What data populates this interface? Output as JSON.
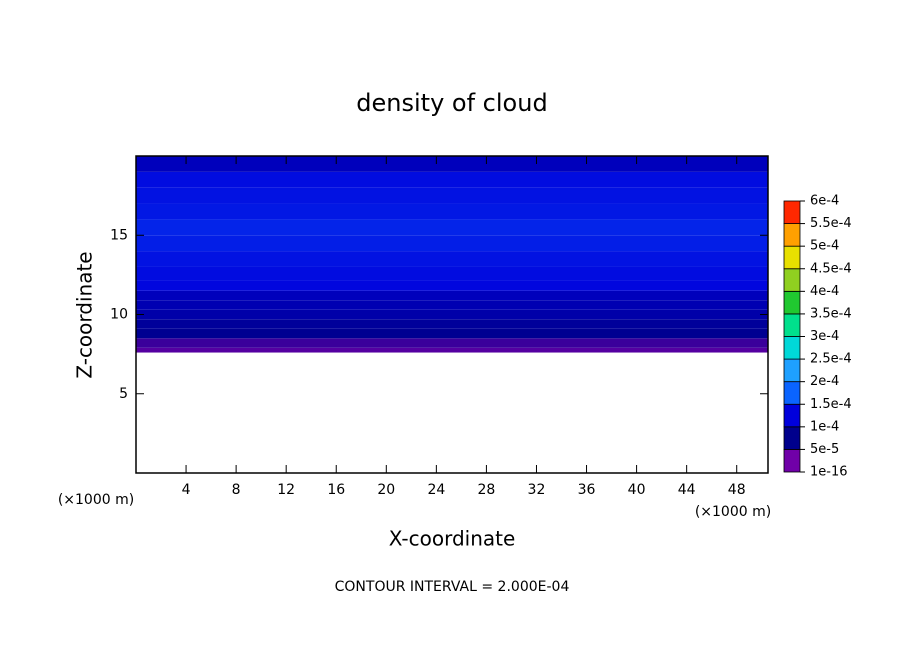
{
  "chart_data": {
    "type": "contour",
    "title": "density of cloud",
    "x_label": "X-coordinate",
    "y_label": "Z-coordinate",
    "x_unit": "(×1000 m)",
    "footer": "CONTOUR INTERVAL = 2.000E-04",
    "xlim": [
      0,
      50.5
    ],
    "ylim": [
      0,
      20
    ],
    "xticks": [
      4,
      8,
      12,
      16,
      20,
      24,
      28,
      32,
      36,
      40,
      44,
      48
    ],
    "yticks": [
      5,
      10,
      15
    ],
    "field": {
      "z": [
        7.6,
        8.2,
        8.8,
        9.4,
        10,
        10.6,
        11.2,
        11.8,
        12.5,
        13.5,
        14.5,
        15.5,
        16.5,
        17.5,
        18.5,
        19.5
      ],
      "values": [
        2e-05,
        4e-05,
        5.5e-05,
        6.5e-05,
        8e-05,
        9e-05,
        0.0001,
        0.000105,
        0.00011,
        0.000115,
        0.000125,
        0.00013,
        0.00012,
        0.000115,
        0.00011,
        0.0001
      ]
    },
    "colorbar": {
      "ticks": [
        {
          "value": 1e-16,
          "label": "1e-16"
        },
        {
          "value": 5e-05,
          "label": "5e-5"
        },
        {
          "value": 0.0001,
          "label": "1e-4"
        },
        {
          "value": 0.00015,
          "label": "1.5e-4"
        },
        {
          "value": 0.0002,
          "label": "2e-4"
        },
        {
          "value": 0.00025,
          "label": "2.5e-4"
        },
        {
          "value": 0.0003,
          "label": "3e-4"
        },
        {
          "value": 0.00035,
          "label": "3.5e-4"
        },
        {
          "value": 0.0004,
          "label": "4e-4"
        },
        {
          "value": 0.00045,
          "label": "4.5e-4"
        },
        {
          "value": 0.0005,
          "label": "5e-4"
        },
        {
          "value": 0.00055,
          "label": "5.5e-4"
        },
        {
          "value": 0.0006,
          "label": "6e-4"
        }
      ],
      "colors": [
        "#7000a8",
        "#00008c",
        "#0000dc",
        "#0a64ff",
        "#1ea0ff",
        "#00d8d8",
        "#00e08c",
        "#20c830",
        "#90d020",
        "#e8e000",
        "#ffa000",
        "#ff2800"
      ]
    }
  }
}
